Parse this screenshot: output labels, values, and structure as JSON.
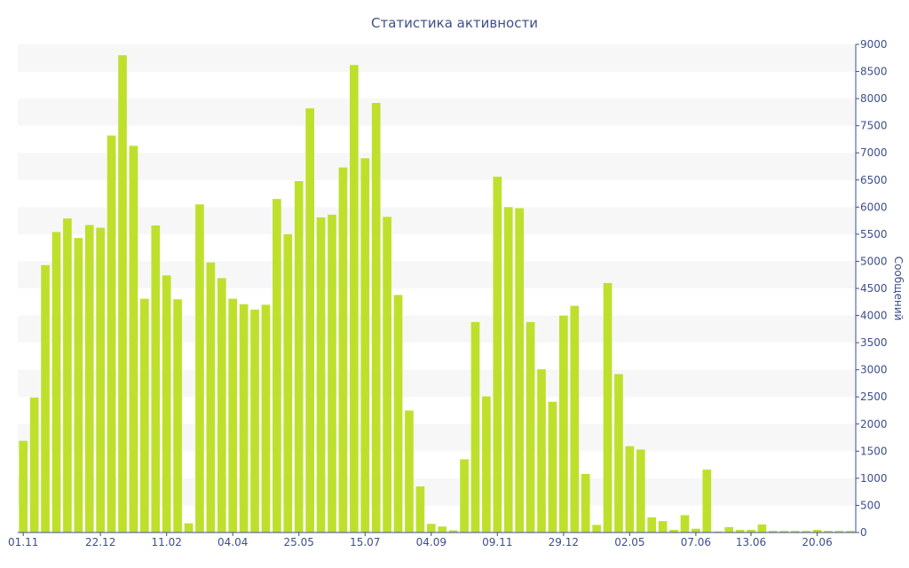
{
  "chart_data": {
    "type": "bar",
    "title": "Статистика активности",
    "xlabel": "",
    "ylabel": "Сообщений",
    "ylim": [
      0,
      9000
    ],
    "y_ticks": [
      0,
      500,
      1000,
      1500,
      2000,
      2500,
      3000,
      3500,
      4000,
      4500,
      5000,
      5500,
      6000,
      6500,
      7000,
      7500,
      8000,
      8500,
      9000
    ],
    "y_axis_side": "right",
    "grid": "horizontal bands",
    "x_tick_labels": [
      {
        "index": 0,
        "label": "01.11"
      },
      {
        "index": 7,
        "label": "22.12"
      },
      {
        "index": 13,
        "label": "11.02"
      },
      {
        "index": 19,
        "label": "04.04"
      },
      {
        "index": 25,
        "label": "25.05"
      },
      {
        "index": 31,
        "label": "15.07"
      },
      {
        "index": 37,
        "label": "04.09"
      },
      {
        "index": 43,
        "label": "09.11"
      },
      {
        "index": 49,
        "label": "29.12"
      },
      {
        "index": 55,
        "label": "02.05"
      },
      {
        "index": 61,
        "label": "07.06"
      },
      {
        "index": 66,
        "label": "13.06"
      },
      {
        "index": 72,
        "label": "20.06"
      }
    ],
    "bar_color": "#bee02d",
    "values": [
      1690,
      2490,
      4930,
      5540,
      5790,
      5430,
      5670,
      5620,
      7320,
      8800,
      7130,
      4310,
      5660,
      4740,
      4300,
      170,
      6050,
      4980,
      4690,
      4310,
      4210,
      4110,
      4200,
      6150,
      5500,
      6480,
      7820,
      5810,
      5860,
      6730,
      8620,
      6900,
      7920,
      5820,
      4380,
      2250,
      850,
      160,
      110,
      40,
      1350,
      3880,
      2510,
      6560,
      6000,
      5980,
      3880,
      3010,
      2410,
      4000,
      4180,
      1080,
      140,
      4600,
      2920,
      1590,
      1530,
      280,
      210,
      50,
      320,
      70,
      1160,
      20,
      100,
      50,
      50,
      150,
      30,
      30,
      30,
      30,
      50,
      30,
      30,
      30
    ]
  }
}
